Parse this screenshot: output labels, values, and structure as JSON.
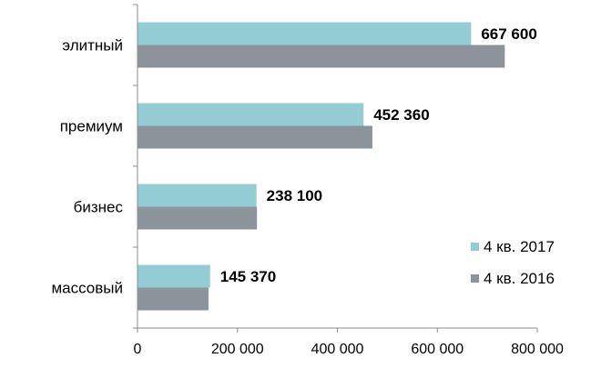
{
  "chart_data": {
    "type": "bar",
    "orientation": "horizontal",
    "categories": [
      "элитный",
      "премиум",
      "бизнес",
      "массовый"
    ],
    "series": [
      {
        "name": "4 кв. 2017",
        "color": "#93cdd3",
        "values": [
          667600,
          452360,
          238100,
          145370
        ],
        "data_labels": [
          "667 600",
          "452 360",
          "238 100",
          "145 370"
        ]
      },
      {
        "name": "4 кв. 2016",
        "color": "#8c939a",
        "values": [
          735000,
          470000,
          239000,
          142000
        ]
      }
    ],
    "xlim": [
      0,
      800000
    ],
    "xticks": [
      {
        "value": 0,
        "label": "0"
      },
      {
        "value": 200000,
        "label": "200 000"
      },
      {
        "value": 400000,
        "label": "400 000"
      },
      {
        "value": 600000,
        "label": "600 000"
      },
      {
        "value": 800000,
        "label": "800 000"
      }
    ],
    "grid": false,
    "legend": "bottom-right"
  }
}
